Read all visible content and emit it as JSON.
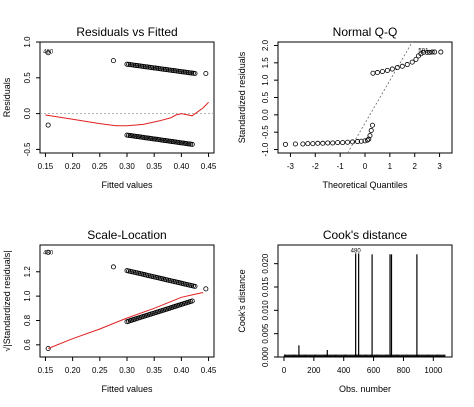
{
  "chart_data": [
    {
      "type": "scatter",
      "title": "Residuals vs Fitted",
      "xlabel": "Fitted values",
      "ylabel": "Residuals",
      "xlim": [
        0.14,
        0.46
      ],
      "ylim": [
        -0.55,
        1.0
      ],
      "xticks": [
        0.15,
        0.2,
        0.25,
        0.3,
        0.35,
        0.4,
        0.45
      ],
      "xtick_labels": [
        "0.15",
        "0.20",
        "0.25",
        "0.30",
        "0.35",
        "0.40",
        "0.45"
      ],
      "yticks": [
        -0.5,
        0.0,
        0.5,
        1.0
      ],
      "ytick_labels": [
        "-0.5",
        "0.0",
        "0.5",
        "1.0"
      ],
      "ref_line": 0,
      "annotations": [
        {
          "text": "480",
          "x": 0.155,
          "y": 0.87
        }
      ],
      "points": [
        [
          0.155,
          0.85
        ],
        [
          0.155,
          -0.16
        ],
        [
          0.275,
          0.74
        ]
      ],
      "point_groups": [
        {
          "x_from": 0.3,
          "x_to": 0.425,
          "y_from": 0.69,
          "y_to": 0.56,
          "n": 42
        },
        {
          "x_from": 0.3,
          "x_to": 0.42,
          "y_from": -0.3,
          "y_to": -0.43,
          "n": 42
        }
      ],
      "extra_points": [
        [
          0.445,
          0.56
        ]
      ],
      "smooth_line": [
        [
          0.15,
          -0.02
        ],
        [
          0.2,
          -0.08
        ],
        [
          0.25,
          -0.14
        ],
        [
          0.28,
          -0.17
        ],
        [
          0.3,
          -0.17
        ],
        [
          0.33,
          -0.15
        ],
        [
          0.36,
          -0.1
        ],
        [
          0.38,
          -0.06
        ],
        [
          0.39,
          -0.02
        ],
        [
          0.4,
          0.0
        ],
        [
          0.42,
          -0.03
        ],
        [
          0.44,
          0.08
        ],
        [
          0.45,
          0.16
        ]
      ]
    },
    {
      "type": "scatter",
      "title": "Normal Q-Q",
      "xlabel": "Theoretical Quantiles",
      "ylabel": "Standardized residuals",
      "xlim": [
        -3.5,
        3.5
      ],
      "ylim": [
        -1.1,
        2.1
      ],
      "xticks": [
        -3,
        -2,
        -1,
        0,
        1,
        2,
        3
      ],
      "xtick_labels": [
        "-3",
        "-2",
        "-1",
        "0",
        "1",
        "2",
        "3"
      ],
      "yticks": [
        -1.0,
        -0.5,
        0.0,
        0.5,
        1.0,
        1.5,
        2.0
      ],
      "ytick_labels": [
        "-1.0",
        "-0.5",
        "0.0",
        "0.5",
        "1.0",
        "1.5",
        "2.0"
      ],
      "annotations": [
        {
          "text": "501",
          "x": 2.35,
          "y": 1.85
        }
      ],
      "reference_line": [
        [
          -0.7,
          -1.1
        ],
        [
          1.9,
          2.1
        ]
      ],
      "points": [
        [
          -3.2,
          -0.85
        ],
        [
          -2.8,
          -0.84
        ],
        [
          -2.5,
          -0.84
        ],
        [
          -2.3,
          -0.83
        ],
        [
          -2.1,
          -0.83
        ],
        [
          -1.9,
          -0.82
        ],
        [
          -1.7,
          -0.82
        ],
        [
          -1.5,
          -0.81
        ],
        [
          -1.3,
          -0.81
        ],
        [
          -1.1,
          -0.8
        ],
        [
          -0.9,
          -0.8
        ],
        [
          -0.7,
          -0.79
        ],
        [
          -0.5,
          -0.78
        ],
        [
          -0.3,
          -0.77
        ],
        [
          -0.15,
          -0.76
        ],
        [
          0.0,
          -0.75
        ],
        [
          0.1,
          -0.73
        ],
        [
          0.15,
          -0.7
        ],
        [
          0.2,
          -0.6
        ],
        [
          0.25,
          -0.45
        ],
        [
          0.3,
          -0.3
        ],
        [
          0.32,
          1.2
        ],
        [
          0.5,
          1.22
        ],
        [
          0.7,
          1.25
        ],
        [
          0.9,
          1.28
        ],
        [
          1.1,
          1.32
        ],
        [
          1.3,
          1.36
        ],
        [
          1.5,
          1.4
        ],
        [
          1.7,
          1.45
        ],
        [
          1.9,
          1.52
        ],
        [
          2.05,
          1.6
        ],
        [
          2.15,
          1.7
        ],
        [
          2.25,
          1.76
        ],
        [
          2.35,
          1.8
        ],
        [
          2.5,
          1.8
        ],
        [
          2.6,
          1.8
        ],
        [
          2.7,
          1.81
        ],
        [
          2.8,
          1.81
        ],
        [
          3.05,
          1.81
        ]
      ]
    },
    {
      "type": "scatter",
      "title": "Scale-Location",
      "xlabel": "Fitted values",
      "ylabel": "√|Standardized residuals|",
      "xlim": [
        0.14,
        0.46
      ],
      "ylim": [
        0.5,
        1.42
      ],
      "xticks": [
        0.15,
        0.2,
        0.25,
        0.3,
        0.35,
        0.4,
        0.45
      ],
      "xtick_labels": [
        "0.15",
        "0.20",
        "0.25",
        "0.30",
        "0.35",
        "0.40",
        "0.45"
      ],
      "yticks": [
        0.6,
        0.8,
        1.0,
        1.2
      ],
      "ytick_labels": [
        "0.6",
        "0.8",
        "1.0",
        "1.2"
      ],
      "annotations": [
        {
          "text": "480",
          "x": 0.155,
          "y": 1.36
        }
      ],
      "points": [
        [
          0.155,
          1.36
        ],
        [
          0.155,
          0.57
        ],
        [
          0.275,
          1.24
        ]
      ],
      "point_groups": [
        {
          "x_from": 0.3,
          "x_to": 0.425,
          "y_from": 1.21,
          "y_to": 1.08,
          "n": 42
        },
        {
          "x_from": 0.3,
          "x_to": 0.42,
          "y_from": 0.79,
          "y_to": 0.96,
          "n": 42
        }
      ],
      "extra_points": [
        [
          0.445,
          1.06
        ]
      ],
      "smooth_line": [
        [
          0.155,
          0.57
        ],
        [
          0.2,
          0.65
        ],
        [
          0.25,
          0.73
        ],
        [
          0.3,
          0.82
        ],
        [
          0.35,
          0.9
        ],
        [
          0.4,
          0.99
        ],
        [
          0.42,
          1.01
        ],
        [
          0.44,
          1.03
        ]
      ]
    },
    {
      "type": "bar",
      "title": "Cook's distance",
      "xlabel": "Obs. number",
      "ylabel": "Cook's distance",
      "xlim": [
        -40,
        1125
      ],
      "ylim": [
        0,
        0.024
      ],
      "xticks": [
        0,
        200,
        400,
        600,
        800,
        1000
      ],
      "xtick_labels": [
        "0",
        "200",
        "400",
        "600",
        "800",
        "1000"
      ],
      "yticks": [
        0.0,
        0.005,
        0.01,
        0.015,
        0.02
      ],
      "ytick_labels": [
        "0.000",
        "0.005",
        "0.010",
        "0.015",
        "0.020"
      ],
      "annotations": [
        {
          "text": "480",
          "x": 480,
          "y": 0.0228
        }
      ],
      "baseline_value": 0.0006,
      "n_obs": 1080,
      "spikes": [
        [
          100,
          0.0025
        ],
        [
          290,
          0.0015
        ],
        [
          480,
          0.0222
        ],
        [
          500,
          0.0222
        ],
        [
          590,
          0.022
        ],
        [
          710,
          0.022
        ],
        [
          720,
          0.022
        ],
        [
          890,
          0.022
        ]
      ]
    }
  ]
}
